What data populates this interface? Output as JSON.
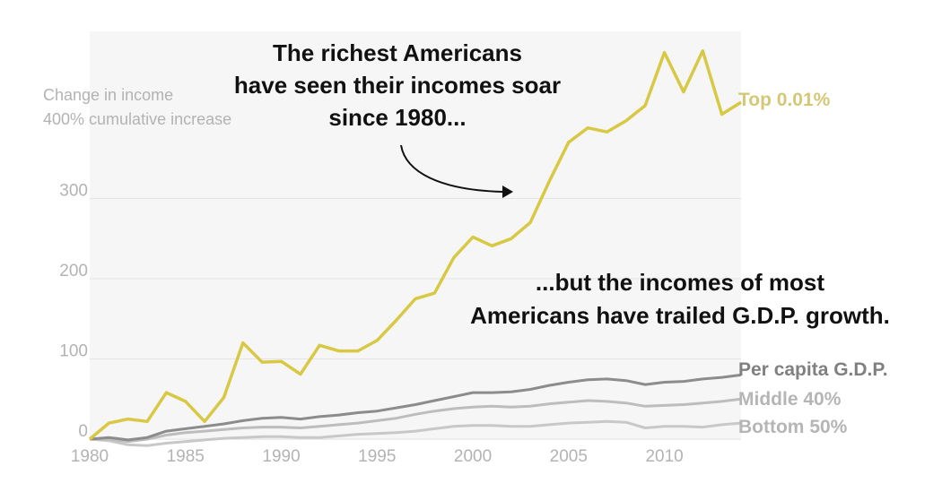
{
  "chart_data": {
    "type": "line",
    "ylabel": "Change in income",
    "ylabel_secondary": "400% cumulative increase",
    "xlim": [
      1980,
      2014
    ],
    "ylim": [
      0,
      500
    ],
    "grid": true,
    "x_ticks": [
      1980,
      1985,
      1990,
      1995,
      2000,
      2005,
      2010
    ],
    "y_ticks": [
      0,
      100,
      200,
      300
    ],
    "series": [
      {
        "name": "Top 0.01%",
        "color": "#d8c844",
        "label_color": "#d4c878",
        "x": [
          1980,
          1981,
          1982,
          1983,
          1984,
          1985,
          1986,
          1987,
          1988,
          1989,
          1990,
          1991,
          1992,
          1993,
          1994,
          1995,
          1996,
          1997,
          1998,
          1999,
          2000,
          2001,
          2002,
          2003,
          2004,
          2005,
          2006,
          2007,
          2008,
          2009,
          2010,
          2011,
          2012,
          2013,
          2014
        ],
        "values": [
          0,
          20,
          25,
          22,
          58,
          47,
          22,
          52,
          120,
          96,
          97,
          81,
          117,
          110,
          110,
          123,
          148,
          175,
          182,
          226,
          252,
          241,
          250,
          270,
          322,
          370,
          388,
          383,
          397,
          416,
          482,
          433,
          484,
          405,
          420
        ]
      },
      {
        "name": "Per capita G.D.P.",
        "color": "#8c8c8c",
        "label_color": "#808080",
        "x": [
          1980,
          1981,
          1982,
          1983,
          1984,
          1985,
          1986,
          1987,
          1988,
          1989,
          1990,
          1991,
          1992,
          1993,
          1994,
          1995,
          1996,
          1997,
          1998,
          1999,
          2000,
          2001,
          2002,
          2003,
          2004,
          2005,
          2006,
          2007,
          2008,
          2009,
          2010,
          2011,
          2012,
          2013,
          2014
        ],
        "values": [
          0,
          2,
          -1,
          2,
          10,
          13,
          16,
          19,
          23,
          26,
          27,
          25,
          28,
          30,
          33,
          35,
          39,
          43,
          48,
          53,
          58,
          58,
          59,
          62,
          67,
          71,
          74,
          75,
          73,
          68,
          71,
          72,
          75,
          77,
          80
        ]
      },
      {
        "name": "Middle 40%",
        "color": "#bdbdbd",
        "label_color": "#b5b5b5",
        "x": [
          1980,
          1981,
          1982,
          1983,
          1984,
          1985,
          1986,
          1987,
          1988,
          1989,
          1990,
          1991,
          1992,
          1993,
          1994,
          1995,
          1996,
          1997,
          1998,
          1999,
          2000,
          2001,
          2002,
          2003,
          2004,
          2005,
          2006,
          2007,
          2008,
          2009,
          2010,
          2011,
          2012,
          2013,
          2014
        ],
        "values": [
          0,
          0,
          -3,
          0,
          5,
          8,
          10,
          12,
          14,
          15,
          15,
          14,
          16,
          18,
          20,
          23,
          26,
          31,
          35,
          38,
          40,
          41,
          40,
          41,
          44,
          46,
          48,
          47,
          45,
          41,
          42,
          43,
          45,
          47,
          50
        ]
      },
      {
        "name": "Bottom 50%",
        "color": "#c8c8c8",
        "label_color": "#b5b5b5",
        "x": [
          1980,
          1981,
          1982,
          1983,
          1984,
          1985,
          1986,
          1987,
          1988,
          1989,
          1990,
          1991,
          1992,
          1993,
          1994,
          1995,
          1996,
          1997,
          1998,
          1999,
          2000,
          2001,
          2002,
          2003,
          2004,
          2005,
          2006,
          2007,
          2008,
          2009,
          2010,
          2011,
          2012,
          2013,
          2014
        ],
        "values": [
          0,
          -2,
          -7,
          -8,
          -5,
          -3,
          -1,
          1,
          2,
          3,
          3,
          2,
          2,
          4,
          6,
          7,
          8,
          10,
          13,
          16,
          17,
          17,
          16,
          16,
          18,
          20,
          21,
          22,
          21,
          14,
          16,
          16,
          15,
          18,
          20
        ]
      }
    ],
    "annotations": [
      {
        "lines": [
          "The richest Americans",
          "have seen their incomes soar",
          "since 1980..."
        ]
      },
      {
        "lines": [
          "...but the incomes of most",
          "Americans have trailed G.D.P. growth."
        ]
      }
    ]
  }
}
